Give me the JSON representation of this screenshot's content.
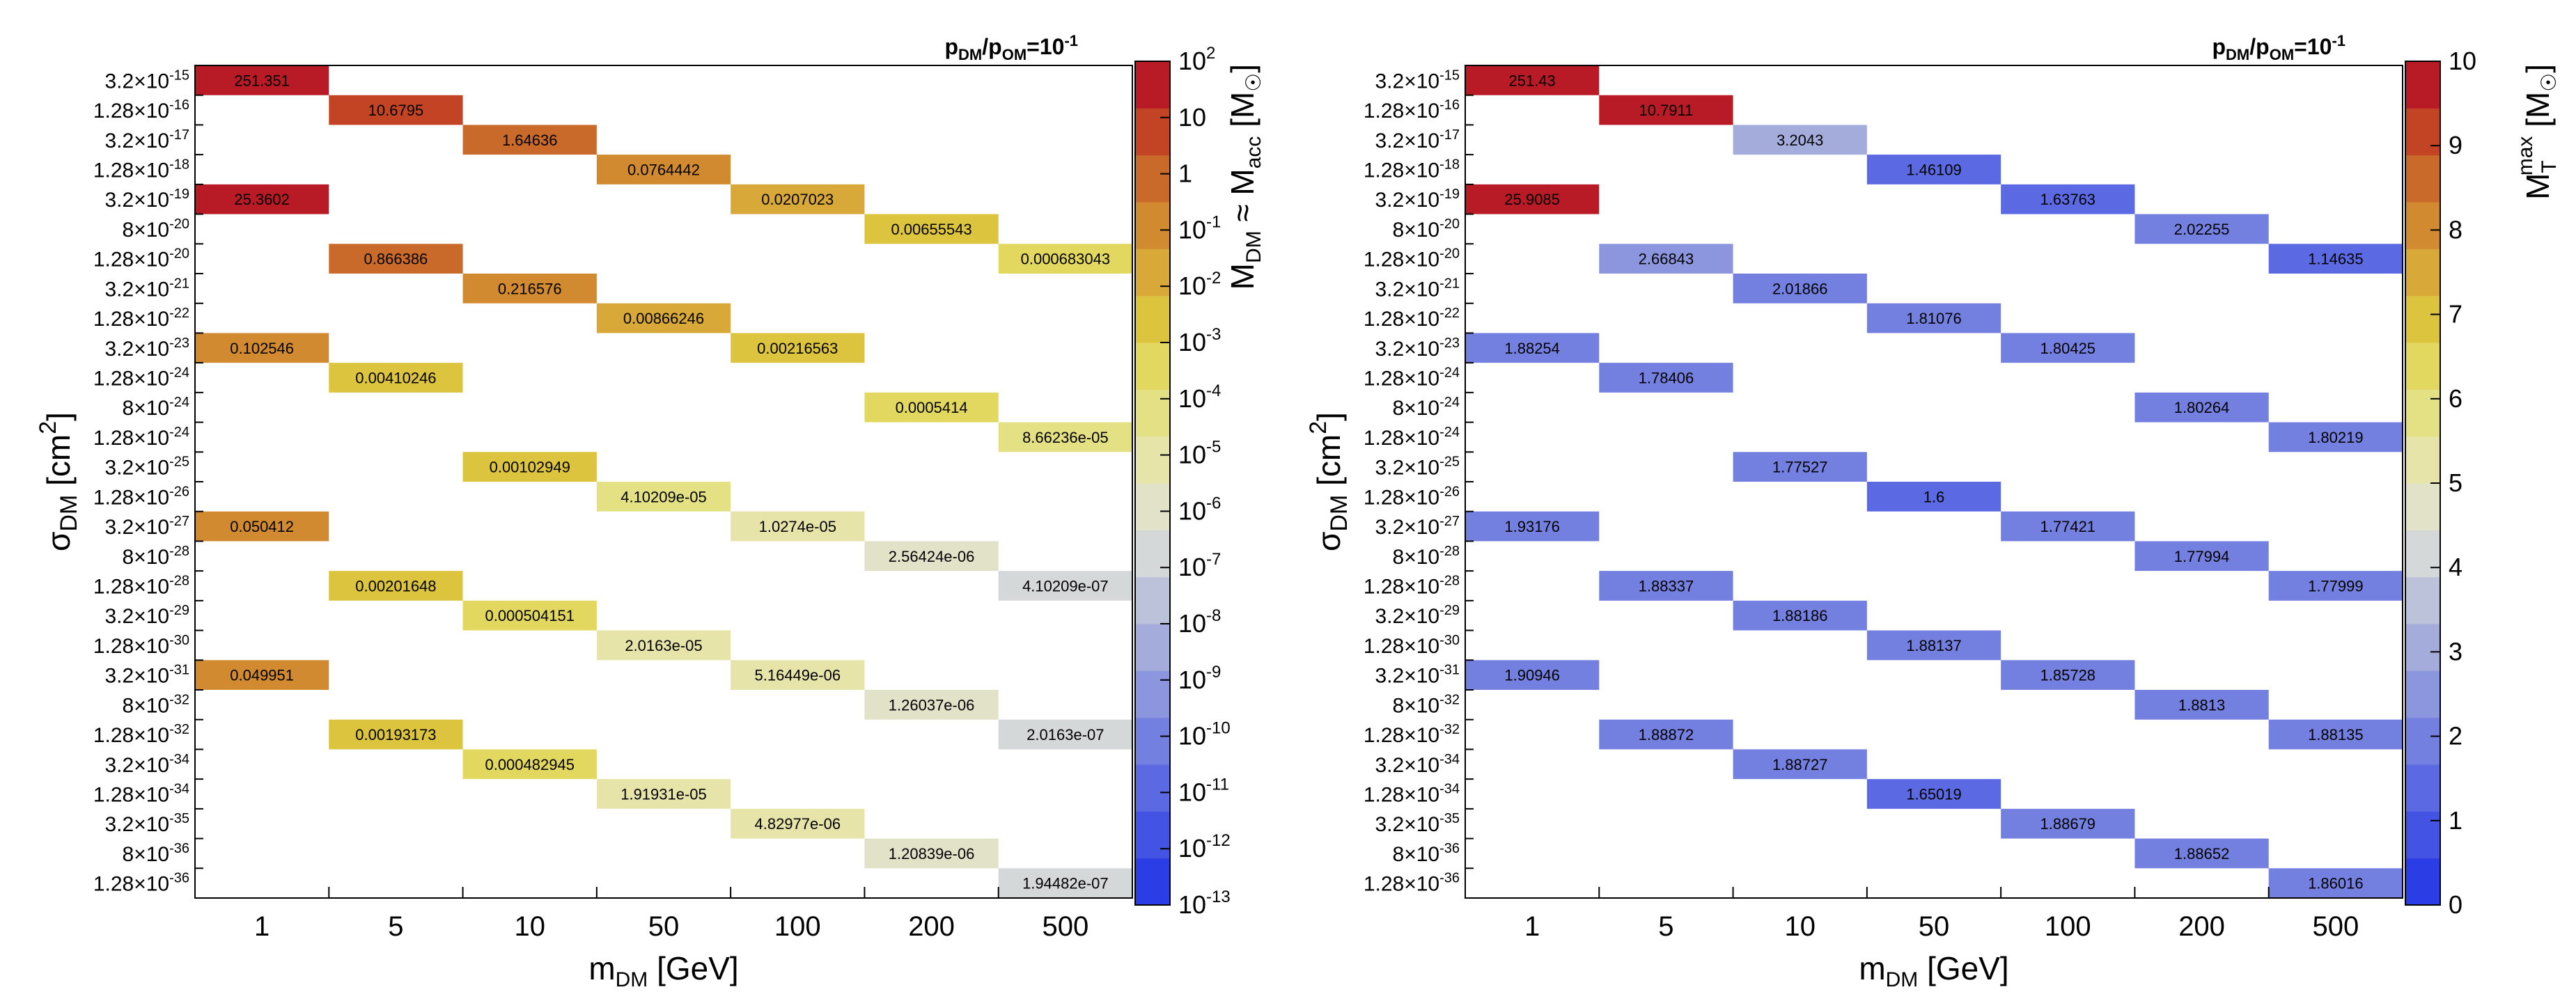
{
  "chart_data": [
    {
      "type": "heatmap",
      "title": "p_DM/p_OM=10^-1",
      "title_parts": {
        "p": "p",
        "dm": "DM",
        "slash": "/p",
        "om": "OM",
        "eq": "=10",
        "exp": "-1"
      },
      "xlabel": "m_DM [GeV]",
      "xlabel_parts": {
        "main": "m",
        "sub": "DM",
        "unit": " [GeV]"
      },
      "ylabel": "σ_DM [cm^2]",
      "ylabel_parts": {
        "main": "σ",
        "sub": "DM",
        "unit": " [cm",
        "exp": "2",
        "close": "]"
      },
      "x_categories": [
        "1",
        "5",
        "10",
        "50",
        "100",
        "200",
        "500"
      ],
      "y_categories": [
        {
          "mant": "3.2",
          "exp": "-15"
        },
        {
          "mant": "1.28",
          "exp": "-16"
        },
        {
          "mant": "3.2",
          "exp": "-17"
        },
        {
          "mant": "1.28",
          "exp": "-18"
        },
        {
          "mant": "3.2",
          "exp": "-19"
        },
        {
          "mant": "8",
          "exp": "-20"
        },
        {
          "mant": "1.28",
          "exp": "-20"
        },
        {
          "mant": "3.2",
          "exp": "-21"
        },
        {
          "mant": "1.28",
          "exp": "-22"
        },
        {
          "mant": "3.2",
          "exp": "-23"
        },
        {
          "mant": "1.28",
          "exp": "-24"
        },
        {
          "mant": "8",
          "exp": "-24"
        },
        {
          "mant": "1.28",
          "exp": "-24"
        },
        {
          "mant": "3.2",
          "exp": "-25"
        },
        {
          "mant": "1.28",
          "exp": "-26"
        },
        {
          "mant": "3.2",
          "exp": "-27"
        },
        {
          "mant": "8",
          "exp": "-28"
        },
        {
          "mant": "1.28",
          "exp": "-28"
        },
        {
          "mant": "3.2",
          "exp": "-29"
        },
        {
          "mant": "1.28",
          "exp": "-30"
        },
        {
          "mant": "3.2",
          "exp": "-31"
        },
        {
          "mant": "8",
          "exp": "-32"
        },
        {
          "mant": "1.28",
          "exp": "-32"
        },
        {
          "mant": "3.2",
          "exp": "-34"
        },
        {
          "mant": "1.28",
          "exp": "-34"
        },
        {
          "mant": "3.2",
          "exp": "-35"
        },
        {
          "mant": "8",
          "exp": "-36"
        },
        {
          "mant": "1.28",
          "exp": "-36"
        }
      ],
      "cells": [
        {
          "col": 0,
          "row": 0,
          "value": 251.351,
          "label": "251.351"
        },
        {
          "col": 1,
          "row": 1,
          "value": 10.6795,
          "label": "10.6795"
        },
        {
          "col": 2,
          "row": 2,
          "value": 1.64636,
          "label": "1.64636"
        },
        {
          "col": 3,
          "row": 3,
          "value": 0.0764442,
          "label": "0.0764442"
        },
        {
          "col": 0,
          "row": 4,
          "value": 25.3602,
          "label": "25.3602"
        },
        {
          "col": 4,
          "row": 4,
          "value": 0.0207023,
          "label": "0.0207023"
        },
        {
          "col": 5,
          "row": 5,
          "value": 0.00655543,
          "label": "0.00655543"
        },
        {
          "col": 1,
          "row": 6,
          "value": 0.866386,
          "label": "0.866386"
        },
        {
          "col": 6,
          "row": 6,
          "value": 0.000683043,
          "label": "0.000683043"
        },
        {
          "col": 2,
          "row": 7,
          "value": 0.216576,
          "label": "0.216576"
        },
        {
          "col": 3,
          "row": 8,
          "value": 0.00866246,
          "label": "0.00866246"
        },
        {
          "col": 0,
          "row": 9,
          "value": 0.102546,
          "label": "0.102546"
        },
        {
          "col": 4,
          "row": 9,
          "value": 0.00216563,
          "label": "0.00216563"
        },
        {
          "col": 1,
          "row": 10,
          "value": 0.00410246,
          "label": "0.00410246"
        },
        {
          "col": 5,
          "row": 11,
          "value": 0.0005414,
          "label": "0.0005414"
        },
        {
          "col": 6,
          "row": 12,
          "value": 8.66236e-05,
          "label": "8.66236e-05"
        },
        {
          "col": 2,
          "row": 13,
          "value": 0.00102949,
          "label": "0.00102949"
        },
        {
          "col": 3,
          "row": 14,
          "value": 4.10209e-05,
          "label": "4.10209e-05"
        },
        {
          "col": 0,
          "row": 15,
          "value": 0.050412,
          "label": "0.050412"
        },
        {
          "col": 4,
          "row": 15,
          "value": 1.0274e-05,
          "label": "1.0274e-05"
        },
        {
          "col": 5,
          "row": 16,
          "value": 2.56424e-06,
          "label": "2.56424e-06"
        },
        {
          "col": 1,
          "row": 17,
          "value": 0.00201648,
          "label": "0.00201648"
        },
        {
          "col": 6,
          "row": 17,
          "value": 4.10209e-07,
          "label": "4.10209e-07"
        },
        {
          "col": 2,
          "row": 18,
          "value": 0.000504151,
          "label": "0.000504151"
        },
        {
          "col": 3,
          "row": 19,
          "value": 2.0163e-05,
          "label": "2.0163e-05"
        },
        {
          "col": 0,
          "row": 20,
          "value": 0.049951,
          "label": "0.049951"
        },
        {
          "col": 4,
          "row": 20,
          "value": 5.16449e-06,
          "label": "5.16449e-06"
        },
        {
          "col": 5,
          "row": 21,
          "value": 1.26037e-06,
          "label": "1.26037e-06"
        },
        {
          "col": 1,
          "row": 22,
          "value": 0.00193173,
          "label": "0.00193173"
        },
        {
          "col": 6,
          "row": 22,
          "value": 2.0163e-07,
          "label": "2.0163e-07"
        },
        {
          "col": 2,
          "row": 23,
          "value": 0.000482945,
          "label": "0.000482945"
        },
        {
          "col": 3,
          "row": 24,
          "value": 1.91931e-05,
          "label": "1.91931e-05"
        },
        {
          "col": 4,
          "row": 25,
          "value": 4.82977e-06,
          "label": "4.82977e-06"
        },
        {
          "col": 5,
          "row": 26,
          "value": 1.20839e-06,
          "label": "1.20839e-06"
        },
        {
          "col": 6,
          "row": 27,
          "value": 1.94482e-07,
          "label": "1.94482e-07"
        }
      ],
      "colorbar": {
        "scale": "log",
        "range": [
          1e-13,
          100
        ],
        "label": "M_DM ≈ M_acc [M_☉]",
        "ticks": [
          {
            "value": 100,
            "mant": "10",
            "exp": "2"
          },
          {
            "value": 10,
            "mant": "10",
            "exp": ""
          },
          {
            "value": 1,
            "mant": "1",
            "exp": ""
          },
          {
            "value": 0.1,
            "mant": "10",
            "exp": "-1"
          },
          {
            "value": 0.01,
            "mant": "10",
            "exp": "-2"
          },
          {
            "value": 0.001,
            "mant": "10",
            "exp": "-3"
          },
          {
            "value": 0.0001,
            "mant": "10",
            "exp": "-4"
          },
          {
            "value": 1e-05,
            "mant": "10",
            "exp": "-5"
          },
          {
            "value": 1e-06,
            "mant": "10",
            "exp": "-6"
          },
          {
            "value": 1e-07,
            "mant": "10",
            "exp": "-7"
          },
          {
            "value": 1e-08,
            "mant": "10",
            "exp": "-8"
          },
          {
            "value": 1e-09,
            "mant": "10",
            "exp": "-9"
          },
          {
            "value": 1e-10,
            "mant": "10",
            "exp": "-10"
          },
          {
            "value": 1e-11,
            "mant": "10",
            "exp": "-11"
          },
          {
            "value": 1e-12,
            "mant": "10",
            "exp": "-12"
          },
          {
            "value": 1e-13,
            "mant": "10",
            "exp": "-13"
          }
        ]
      }
    },
    {
      "type": "heatmap",
      "title": "p_DM/p_OM=10^-1",
      "title_parts": {
        "p": "p",
        "dm": "DM",
        "slash": "/p",
        "om": "OM",
        "eq": "=10",
        "exp": "-1"
      },
      "xlabel": "m_DM [GeV]",
      "xlabel_parts": {
        "main": "m",
        "sub": "DM",
        "unit": " [GeV]"
      },
      "ylabel": "σ_DM [cm^2]",
      "ylabel_parts": {
        "main": "σ",
        "sub": "DM",
        "unit": " [cm",
        "exp": "2",
        "close": "]"
      },
      "x_categories": [
        "1",
        "5",
        "10",
        "50",
        "100",
        "200",
        "500"
      ],
      "y_categories": [
        {
          "mant": "3.2",
          "exp": "-15"
        },
        {
          "mant": "1.28",
          "exp": "-16"
        },
        {
          "mant": "3.2",
          "exp": "-17"
        },
        {
          "mant": "1.28",
          "exp": "-18"
        },
        {
          "mant": "3.2",
          "exp": "-19"
        },
        {
          "mant": "8",
          "exp": "-20"
        },
        {
          "mant": "1.28",
          "exp": "-20"
        },
        {
          "mant": "3.2",
          "exp": "-21"
        },
        {
          "mant": "1.28",
          "exp": "-22"
        },
        {
          "mant": "3.2",
          "exp": "-23"
        },
        {
          "mant": "1.28",
          "exp": "-24"
        },
        {
          "mant": "8",
          "exp": "-24"
        },
        {
          "mant": "1.28",
          "exp": "-24"
        },
        {
          "mant": "3.2",
          "exp": "-25"
        },
        {
          "mant": "1.28",
          "exp": "-26"
        },
        {
          "mant": "3.2",
          "exp": "-27"
        },
        {
          "mant": "8",
          "exp": "-28"
        },
        {
          "mant": "1.28",
          "exp": "-28"
        },
        {
          "mant": "3.2",
          "exp": "-29"
        },
        {
          "mant": "1.28",
          "exp": "-30"
        },
        {
          "mant": "3.2",
          "exp": "-31"
        },
        {
          "mant": "8",
          "exp": "-32"
        },
        {
          "mant": "1.28",
          "exp": "-32"
        },
        {
          "mant": "3.2",
          "exp": "-34"
        },
        {
          "mant": "1.28",
          "exp": "-34"
        },
        {
          "mant": "3.2",
          "exp": "-35"
        },
        {
          "mant": "8",
          "exp": "-36"
        },
        {
          "mant": "1.28",
          "exp": "-36"
        }
      ],
      "cells": [
        {
          "col": 0,
          "row": 0,
          "value": 251.43,
          "label": "251.43"
        },
        {
          "col": 1,
          "row": 1,
          "value": 10.7911,
          "label": "10.7911"
        },
        {
          "col": 2,
          "row": 2,
          "value": 3.2043,
          "label": "3.2043"
        },
        {
          "col": 3,
          "row": 3,
          "value": 1.46109,
          "label": "1.46109"
        },
        {
          "col": 0,
          "row": 4,
          "value": 25.9085,
          "label": "25.9085"
        },
        {
          "col": 4,
          "row": 4,
          "value": 1.63763,
          "label": "1.63763"
        },
        {
          "col": 5,
          "row": 5,
          "value": 2.02255,
          "label": "2.02255"
        },
        {
          "col": 1,
          "row": 6,
          "value": 2.66843,
          "label": "2.66843"
        },
        {
          "col": 6,
          "row": 6,
          "value": 1.14635,
          "label": "1.14635"
        },
        {
          "col": 2,
          "row": 7,
          "value": 2.01866,
          "label": "2.01866"
        },
        {
          "col": 3,
          "row": 8,
          "value": 1.81076,
          "label": "1.81076"
        },
        {
          "col": 0,
          "row": 9,
          "value": 1.88254,
          "label": "1.88254"
        },
        {
          "col": 4,
          "row": 9,
          "value": 1.80425,
          "label": "1.80425"
        },
        {
          "col": 1,
          "row": 10,
          "value": 1.78406,
          "label": "1.78406"
        },
        {
          "col": 5,
          "row": 11,
          "value": 1.80264,
          "label": "1.80264"
        },
        {
          "col": 6,
          "row": 12,
          "value": 1.80219,
          "label": "1.80219"
        },
        {
          "col": 2,
          "row": 13,
          "value": 1.77527,
          "label": "1.77527"
        },
        {
          "col": 3,
          "row": 14,
          "value": 1.6,
          "label": "1.6"
        },
        {
          "col": 0,
          "row": 15,
          "value": 1.93176,
          "label": "1.93176"
        },
        {
          "col": 4,
          "row": 15,
          "value": 1.77421,
          "label": "1.77421"
        },
        {
          "col": 5,
          "row": 16,
          "value": 1.77994,
          "label": "1.77994"
        },
        {
          "col": 1,
          "row": 17,
          "value": 1.88337,
          "label": "1.88337"
        },
        {
          "col": 6,
          "row": 17,
          "value": 1.77999,
          "label": "1.77999"
        },
        {
          "col": 2,
          "row": 18,
          "value": 1.88186,
          "label": "1.88186"
        },
        {
          "col": 3,
          "row": 19,
          "value": 1.88137,
          "label": "1.88137"
        },
        {
          "col": 0,
          "row": 20,
          "value": 1.90946,
          "label": "1.90946"
        },
        {
          "col": 4,
          "row": 20,
          "value": 1.85728,
          "label": "1.85728"
        },
        {
          "col": 5,
          "row": 21,
          "value": 1.8813,
          "label": "1.8813"
        },
        {
          "col": 1,
          "row": 22,
          "value": 1.88872,
          "label": "1.88872"
        },
        {
          "col": 6,
          "row": 22,
          "value": 1.88135,
          "label": "1.88135"
        },
        {
          "col": 2,
          "row": 23,
          "value": 1.88727,
          "label": "1.88727"
        },
        {
          "col": 3,
          "row": 24,
          "value": 1.65019,
          "label": "1.65019"
        },
        {
          "col": 4,
          "row": 25,
          "value": 1.88679,
          "label": "1.88679"
        },
        {
          "col": 5,
          "row": 26,
          "value": 1.88652,
          "label": "1.88652"
        },
        {
          "col": 6,
          "row": 27,
          "value": 1.86016,
          "label": "1.86016"
        }
      ],
      "colorbar": {
        "scale": "linear",
        "range": [
          0,
          10
        ],
        "label": "M_T^max [M_☉]",
        "ticks": [
          {
            "value": 10,
            "mant": "10",
            "exp": ""
          },
          {
            "value": 9,
            "mant": "9",
            "exp": ""
          },
          {
            "value": 8,
            "mant": "8",
            "exp": ""
          },
          {
            "value": 7,
            "mant": "7",
            "exp": ""
          },
          {
            "value": 6,
            "mant": "6",
            "exp": ""
          },
          {
            "value": 5,
            "mant": "5",
            "exp": ""
          },
          {
            "value": 4,
            "mant": "4",
            "exp": ""
          },
          {
            "value": 3,
            "mant": "3",
            "exp": ""
          },
          {
            "value": 2,
            "mant": "2",
            "exp": ""
          },
          {
            "value": 1,
            "mant": "1",
            "exp": ""
          },
          {
            "value": 0,
            "mant": "0",
            "exp": ""
          }
        ]
      }
    }
  ],
  "colors": {
    "palette": [
      "#2b3ee6",
      "#4354e4",
      "#5b6ae2",
      "#7480e0",
      "#8c96de",
      "#a4acdc",
      "#bcc2da",
      "#d4d8d8",
      "#e2e2c8",
      "#e6e4a8",
      "#e4e084",
      "#e2d860",
      "#dcc43e",
      "#d8a838",
      "#d28a30",
      "#ca6a2a",
      "#c24424",
      "#b81a26"
    ]
  }
}
